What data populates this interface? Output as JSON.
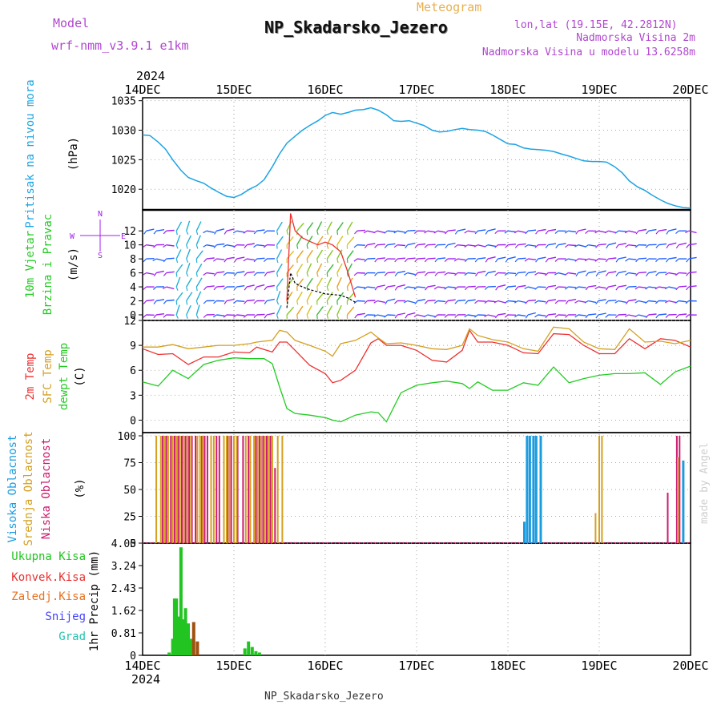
{
  "header": {
    "model_label": "Model",
    "model_name": "wrf-nmm_v3.9.1 e1km",
    "meteogram": "Meteogram",
    "station": "NP_Skadarsko_Jezero",
    "lonlat": "lon,lat (19.15E, 42.2812N)",
    "altitude": "Nadmorska Visina 2m",
    "model_altitude": "Nadmorska Visina u modelu 13.6258m",
    "footer_station": "NP_Skadarsko_Jezero",
    "credit": "made by Angel"
  },
  "colors": {
    "pressure": "#1ca3e3",
    "wind_green": "#22cc22",
    "wind_purple": "#a020f0",
    "temp2m": "#ee3030",
    "sfc": "#d4a020",
    "dewpt": "#22cc22",
    "cloud_high": "#1c9ce0",
    "cloud_mid": "#d4a020",
    "cloud_low": "#cc1a6e",
    "precip_total": "#22c422",
    "precip_conv": "#e83030",
    "precip_ice": "#e87020",
    "precip_snow": "#4444ff",
    "precip_grad": "#22c4b0",
    "title_purple": "#b046d0",
    "title_orange": "#e8b050"
  },
  "chart_data": [
    {
      "type": "line",
      "panel": "pressure",
      "ylabel": [
        "Pritisak na nivou mora",
        "(hPa)"
      ],
      "x_start_label": "2024",
      "x_ticks": [
        "14DEC",
        "15DEC",
        "16DEC",
        "17DEC",
        "18DEC",
        "19DEC",
        "20DEC"
      ],
      "yticks": [
        1020,
        1025,
        1030,
        1035
      ],
      "ylim": [
        1016.5,
        1035.5
      ],
      "xlim_days": [
        0,
        6
      ],
      "series": [
        {
          "key": "pressure",
          "x": [
            0,
            0.08,
            0.17,
            0.25,
            0.33,
            0.42,
            0.5,
            0.58,
            0.67,
            0.75,
            0.83,
            0.92,
            1.0,
            1.08,
            1.17,
            1.25,
            1.33,
            1.42,
            1.5,
            1.58,
            1.67,
            1.75,
            1.83,
            1.92,
            2.0,
            2.08,
            2.17,
            2.25,
            2.33,
            2.42,
            2.5,
            2.58,
            2.67,
            2.75,
            2.83,
            2.92,
            3.0,
            3.08,
            3.17,
            3.25,
            3.33,
            3.42,
            3.5,
            3.58,
            3.67,
            3.75,
            3.83,
            3.92,
            4.0,
            4.08,
            4.17,
            4.25,
            4.33,
            4.42,
            4.5,
            4.58,
            4.67,
            4.75,
            4.83,
            4.92,
            5.0,
            5.08,
            5.17,
            5.25,
            5.33,
            5.42,
            5.5,
            5.58,
            5.67,
            5.75,
            5.83,
            5.92,
            6.0
          ],
          "y": [
            1029.2,
            1029.1,
            1028.0,
            1026.8,
            1025.0,
            1023.2,
            1022.0,
            1021.5,
            1021.0,
            1020.2,
            1019.5,
            1018.8,
            1018.6,
            1019.1,
            1020.0,
            1020.6,
            1021.6,
            1023.8,
            1026.0,
            1027.8,
            1029.0,
            1030.0,
            1030.8,
            1031.6,
            1032.5,
            1033.0,
            1032.7,
            1033.0,
            1033.4,
            1033.5,
            1033.8,
            1033.4,
            1032.6,
            1031.6,
            1031.5,
            1031.6,
            1031.2,
            1030.8,
            1030.0,
            1029.7,
            1029.8,
            1030.1,
            1030.3,
            1030.1,
            1030.0,
            1029.8,
            1029.2,
            1028.4,
            1027.7,
            1027.6,
            1027.0,
            1026.8,
            1026.7,
            1026.6,
            1026.4,
            1026.0,
            1025.6,
            1025.2,
            1024.8,
            1024.7,
            1024.7,
            1024.6,
            1023.8,
            1022.8,
            1021.4,
            1020.4,
            1019.8,
            1019.0,
            1018.2,
            1017.6,
            1017.2,
            1016.9,
            1016.8
          ]
        }
      ]
    },
    {
      "type": "line",
      "panel": "wind",
      "ylabel": [
        "10m Vjetar",
        "Brzina i Pravac",
        "(m/s)"
      ],
      "compass": {
        "n": "N",
        "s": "S",
        "e": "E",
        "w": "W"
      },
      "yticks": [
        0,
        2,
        4,
        6,
        8,
        10,
        12
      ],
      "ylim": [
        -0.8,
        15
      ],
      "series": [
        {
          "key": "speed",
          "x": [
            1.58,
            1.62,
            1.67,
            1.75,
            1.83,
            1.92,
            2.0,
            2.08,
            2.17,
            2.25,
            2.33
          ],
          "y": [
            1.0,
            6.0,
            4.5,
            4.0,
            3.6,
            3.3,
            3.0,
            2.9,
            2.8,
            2.4,
            1.8
          ]
        },
        {
          "key": "gust",
          "x": [
            1.58,
            1.62,
            1.67,
            1.75,
            1.83,
            1.92,
            2.0,
            2.08,
            2.17,
            2.25,
            2.33
          ],
          "y": [
            2.0,
            14.5,
            12.0,
            11.0,
            10.5,
            10.0,
            10.4,
            10.0,
            9.0,
            6.0,
            2.5
          ]
        }
      ]
    },
    {
      "type": "line",
      "panel": "temperature",
      "ylabel": [
        "2m Temp",
        "SFC Temp",
        "dewpt Temp",
        "(C)"
      ],
      "yticks": [
        0,
        3,
        6,
        9,
        12
      ],
      "ylim": [
        -1.5,
        12
      ],
      "x": [
        0,
        0.17,
        0.33,
        0.5,
        0.67,
        0.83,
        1.0,
        1.17,
        1.25,
        1.33,
        1.42,
        1.5,
        1.58,
        1.67,
        1.83,
        2.0,
        2.08,
        2.17,
        2.33,
        2.5,
        2.58,
        2.67,
        2.83,
        3.0,
        3.17,
        3.33,
        3.5,
        3.58,
        3.67,
        3.83,
        4.0,
        4.17,
        4.33,
        4.5,
        4.67,
        4.83,
        5.0,
        5.17,
        5.33,
        5.5,
        5.67,
        5.83,
        6.0
      ],
      "series": [
        {
          "key": "temp2m",
          "y": [
            8.6,
            7.9,
            8.0,
            6.7,
            7.6,
            7.6,
            8.2,
            8.1,
            8.8,
            8.5,
            8.2,
            9.4,
            9.4,
            8.4,
            6.6,
            5.6,
            4.5,
            4.8,
            6.0,
            9.3,
            9.8,
            9.0,
            9.0,
            8.4,
            7.2,
            7.0,
            8.4,
            10.8,
            9.4,
            9.4,
            9.0,
            8.1,
            8.0,
            10.4,
            10.3,
            9.0,
            8.0,
            8.0,
            9.8,
            8.6,
            9.8,
            9.6,
            8.8
          ]
        },
        {
          "key": "sfc",
          "y": [
            8.8,
            8.8,
            9.1,
            8.6,
            8.8,
            9.0,
            9.0,
            9.2,
            9.4,
            9.5,
            9.6,
            10.8,
            10.6,
            9.6,
            9.0,
            8.3,
            7.7,
            9.2,
            9.6,
            10.6,
            9.9,
            9.2,
            9.3,
            9.0,
            8.6,
            8.5,
            9.0,
            11.0,
            10.2,
            9.7,
            9.4,
            8.6,
            8.3,
            11.2,
            11.0,
            9.4,
            8.6,
            8.5,
            11.0,
            9.4,
            9.5,
            9.2,
            9.6
          ]
        },
        {
          "key": "dewpt",
          "y": [
            4.6,
            4.1,
            6.0,
            5.0,
            6.7,
            7.2,
            7.5,
            7.4,
            7.4,
            7.4,
            6.8,
            4.0,
            1.4,
            0.8,
            0.6,
            0.3,
            0.0,
            -0.2,
            0.6,
            1.0,
            0.9,
            -0.2,
            3.3,
            4.2,
            4.5,
            4.7,
            4.4,
            3.8,
            4.6,
            3.6,
            3.6,
            4.5,
            4.2,
            6.4,
            4.5,
            5.0,
            5.4,
            5.6,
            5.6,
            5.7,
            4.3,
            5.8,
            6.5
          ]
        }
      ]
    },
    {
      "type": "bar",
      "panel": "clouds",
      "ylabel": [
        "Visoka Oblacnost",
        "Srednja Oblacnost",
        "Niska Oblacnost",
        "(%)"
      ],
      "yticks": [
        0,
        25,
        50,
        75,
        100
      ],
      "ylim": [
        0,
        103
      ],
      "series": [
        {
          "key": "low",
          "x": [
            0.22,
            0.26,
            0.31,
            0.35,
            0.39,
            0.43,
            0.47,
            0.51,
            0.54,
            0.58,
            0.65,
            0.68,
            0.71,
            0.81,
            0.84,
            0.93,
            0.97,
            1.04,
            1.1,
            1.16,
            1.24,
            1.28,
            1.32,
            1.36,
            1.4,
            1.45,
            5.75,
            5.85,
            5.88
          ],
          "values": [
            100,
            100,
            100,
            100,
            100,
            100,
            100,
            100,
            100,
            100,
            100,
            100,
            100,
            100,
            100,
            100,
            100,
            100,
            100,
            100,
            100,
            100,
            100,
            100,
            100,
            70,
            47,
            100,
            100
          ]
        },
        {
          "key": "mid",
          "x": [
            0.15,
            0.2,
            0.24,
            0.28,
            0.33,
            0.37,
            0.41,
            0.45,
            0.49,
            0.53,
            0.6,
            0.63,
            0.66,
            0.75,
            0.78,
            0.89,
            0.92,
            0.95,
            1.0,
            1.03,
            1.13,
            1.18,
            1.22,
            1.26,
            1.3,
            1.34,
            1.38,
            1.42,
            1.48,
            1.53,
            4.96,
            5.0,
            5.03,
            5.86
          ],
          "values": [
            100,
            100,
            100,
            100,
            100,
            100,
            100,
            100,
            100,
            100,
            100,
            100,
            100,
            100,
            100,
            100,
            100,
            100,
            100,
            100,
            100,
            100,
            100,
            100,
            100,
            100,
            100,
            100,
            100,
            100,
            28,
            100,
            100,
            80
          ]
        },
        {
          "key": "high",
          "x": [
            4.18,
            4.21,
            4.24,
            4.28,
            4.31,
            4.36,
            5.92
          ],
          "values": [
            20,
            100,
            100,
            100,
            100,
            100,
            77
          ]
        }
      ]
    },
    {
      "type": "bar",
      "panel": "precip",
      "ylabel": [
        "1hr Precip (mm)"
      ],
      "legend": [
        "Ukupna Kisa",
        "Konvek.Kisa",
        "Zaledj.Kisa",
        "Snijeg",
        "Grad"
      ],
      "yticks": [
        0,
        0.81,
        1.62,
        2.43,
        3.24,
        4.05
      ],
      "ylim": [
        0,
        4.05
      ],
      "series": [
        {
          "key": "total",
          "x": [
            0.29,
            0.33,
            0.35,
            0.37,
            0.39,
            0.42,
            0.44,
            0.47,
            0.5,
            0.53,
            1.12,
            1.16,
            1.2,
            1.24,
            1.28
          ],
          "values": [
            0.1,
            0.6,
            2.05,
            2.05,
            1.4,
            3.9,
            1.3,
            1.7,
            1.15,
            0.6,
            0.25,
            0.5,
            0.3,
            0.15,
            0.1
          ]
        },
        {
          "key": "ice",
          "x": [
            0.56,
            0.6
          ],
          "values": [
            1.2,
            0.5
          ]
        }
      ]
    }
  ]
}
